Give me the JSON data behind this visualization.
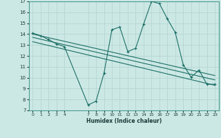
{
  "bg_color": "#cce8e5",
  "grid_color": "#b8d8d5",
  "line_color": "#1a6e64",
  "xlim": [
    -0.5,
    23.5
  ],
  "ylim": [
    7,
    17
  ],
  "xlabel": "Humidex (Indice chaleur)",
  "xticks": [
    0,
    1,
    2,
    3,
    4,
    7,
    8,
    9,
    10,
    11,
    12,
    13,
    14,
    15,
    16,
    17,
    18,
    19,
    20,
    21,
    22,
    23
  ],
  "yticks": [
    7,
    8,
    9,
    10,
    11,
    12,
    13,
    14,
    15,
    16,
    17
  ],
  "curve1_x": [
    0,
    1,
    2,
    3,
    4,
    7,
    8,
    9,
    10,
    11,
    12,
    13,
    14,
    15,
    16,
    17,
    18,
    19,
    20,
    21,
    22,
    23
  ],
  "curve1_y": [
    14.1,
    13.85,
    13.5,
    13.1,
    12.85,
    7.5,
    7.85,
    10.4,
    14.4,
    14.65,
    12.4,
    12.7,
    14.9,
    17.0,
    16.8,
    15.4,
    14.15,
    11.2,
    10.05,
    10.7,
    9.4,
    9.4
  ],
  "trend1_x": [
    0,
    23
  ],
  "trend1_y": [
    14.0,
    10.2
  ],
  "trend2_x": [
    0,
    23
  ],
  "trend2_y": [
    13.7,
    9.8
  ],
  "trend3_x": [
    0,
    23
  ],
  "trend3_y": [
    13.3,
    9.3
  ]
}
